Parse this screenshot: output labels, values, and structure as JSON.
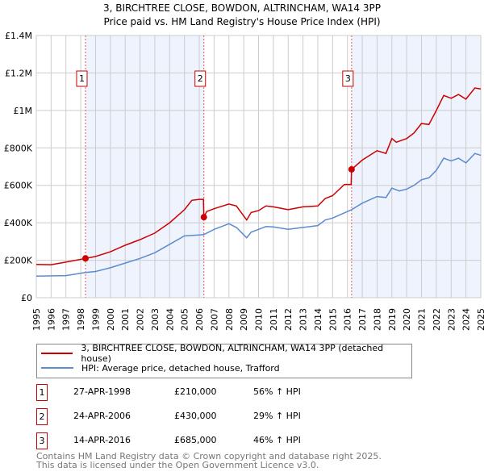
{
  "title": "3, BIRCHTREE CLOSE, BOWDON, ALTRINCHAM, WA14 3PP",
  "subtitle": "Price paid vs. HM Land Registry's House Price Index (HPI)",
  "chart_data": {
    "type": "line",
    "title": "3, BIRCHTREE CLOSE, BOWDON, ALTRINCHAM, WA14 3PP",
    "subtitle": "Price paid vs. HM Land Registry's House Price Index (HPI)",
    "xlim": [
      1995,
      2025
    ],
    "ylim": [
      0,
      1400000
    ],
    "yticks": [
      0,
      200000,
      400000,
      600000,
      800000,
      1000000,
      1200000,
      1400000
    ],
    "ytick_labels": [
      "£0",
      "£200K",
      "£400K",
      "£600K",
      "£800K",
      "£1M",
      "£1.2M",
      "£1.4M"
    ],
    "xtick_labels": [
      "1995",
      "1996",
      "1997",
      "1998",
      "1999",
      "2000",
      "2001",
      "2002",
      "2003",
      "2004",
      "2005",
      "2006",
      "2007",
      "2008",
      "2009",
      "2010",
      "2011",
      "2012",
      "2013",
      "2014",
      "2015",
      "2016",
      "2017",
      "2018",
      "2019",
      "2020",
      "2021",
      "2022",
      "2023",
      "2024",
      "2025"
    ],
    "grid": true,
    "shaded_ranges": [
      [
        1998.32,
        2006.31
      ],
      [
        2016.28,
        2025
      ]
    ],
    "series": [
      {
        "name": "3, BIRCHTREE CLOSE, BOWDON, ALTRINCHAM, WA14 3PP (detached house)",
        "color": "#cc0000",
        "x": [
          1995,
          1996,
          1997,
          1998.32,
          1999,
          2000,
          2001,
          2002,
          2003,
          2004,
          2005,
          2005.5,
          2006.0,
          2006.28,
          2006.31,
          2006.5,
          2007,
          2008,
          2008.5,
          2009.2,
          2009.5,
          2010,
          2010.5,
          2011,
          2012,
          2013,
          2014,
          2014.5,
          2015,
          2015.8,
          2016.25,
          2016.28,
          2017,
          2018,
          2018.6,
          2019,
          2019.3,
          2020,
          2020.5,
          2021,
          2021.5,
          2022,
          2022.5,
          2023,
          2023.5,
          2024,
          2024.6,
          2025
        ],
        "y": [
          178000,
          176000,
          190000,
          210000,
          220000,
          245000,
          280000,
          310000,
          345000,
          400000,
          470000,
          520000,
          525000,
          525000,
          430000,
          460000,
          475000,
          500000,
          490000,
          415000,
          455000,
          465000,
          490000,
          485000,
          470000,
          485000,
          490000,
          530000,
          545000,
          605000,
          605000,
          685000,
          735000,
          785000,
          770000,
          850000,
          830000,
          850000,
          880000,
          930000,
          925000,
          1000000,
          1080000,
          1065000,
          1085000,
          1060000,
          1120000,
          1115000
        ]
      },
      {
        "name": "HPI: Average price, detached house, Trafford",
        "color": "#5b8bd0",
        "x": [
          1995,
          1997,
          1998.32,
          1999,
          2000,
          2001,
          2002,
          2003,
          2004,
          2005,
          2006,
          2006.31,
          2007,
          2008,
          2008.5,
          2009.2,
          2009.5,
          2010,
          2010.5,
          2011,
          2012,
          2013,
          2014,
          2014.5,
          2015,
          2016.28,
          2017,
          2018,
          2018.6,
          2019,
          2019.5,
          2020,
          2020.5,
          2021,
          2021.5,
          2022,
          2022.5,
          2023,
          2023.5,
          2024,
          2024.6,
          2025
        ],
        "y": [
          115000,
          118000,
          135000,
          140000,
          160000,
          185000,
          210000,
          240000,
          285000,
          330000,
          335000,
          337000,
          365000,
          395000,
          375000,
          320000,
          350000,
          365000,
          380000,
          378000,
          365000,
          375000,
          385000,
          415000,
          425000,
          470000,
          505000,
          540000,
          535000,
          585000,
          570000,
          580000,
          600000,
          630000,
          640000,
          680000,
          745000,
          730000,
          745000,
          720000,
          770000,
          760000
        ]
      }
    ],
    "sales": [
      {
        "label": "1",
        "x": 1998.32,
        "y": 210000
      },
      {
        "label": "2",
        "x": 2006.31,
        "y": 430000
      },
      {
        "label": "3",
        "x": 2016.28,
        "y": 685000
      }
    ]
  },
  "legend": {
    "property": "3, BIRCHTREE CLOSE, BOWDON, ALTRINCHAM, WA14 3PP (detached house)",
    "hpi": "HPI: Average price, detached house, Trafford"
  },
  "transactions": [
    {
      "num": "1",
      "date": "27-APR-1998",
      "price": "£210,000",
      "hpi": "56% ↑ HPI"
    },
    {
      "num": "2",
      "date": "24-APR-2006",
      "price": "£430,000",
      "hpi": "29% ↑ HPI"
    },
    {
      "num": "3",
      "date": "14-APR-2016",
      "price": "£685,000",
      "hpi": "46% ↑ HPI"
    }
  ],
  "footer": {
    "line1": "Contains HM Land Registry data © Crown copyright and database right 2025.",
    "line2": "This data is licensed under the Open Government Licence v3.0."
  }
}
